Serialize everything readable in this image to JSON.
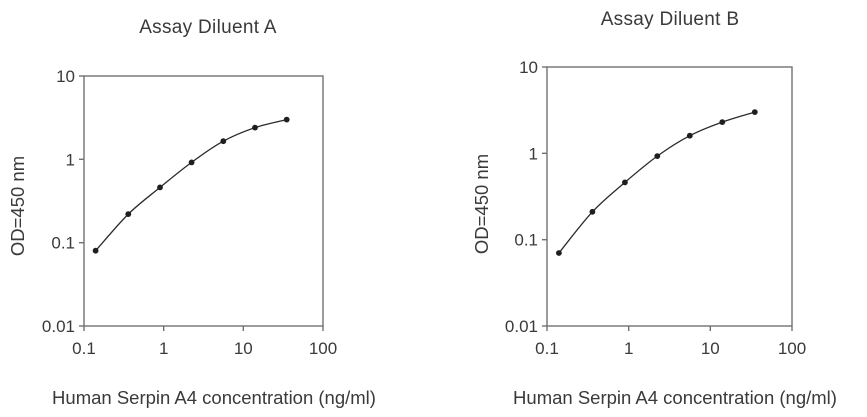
{
  "figure": {
    "background": "#ffffff",
    "text_color": "#3a3a3a",
    "axis_color": "#717171",
    "curve_color": "#2b2b2b",
    "marker_color": "#1f1f1f"
  },
  "chart_data": [
    {
      "type": "line",
      "title": "Assay Diluent A",
      "xlabel": "Human Serpin A4 concentration (ng/ml)",
      "ylabel": "OD=450 nm",
      "x_scale": "log",
      "y_scale": "log",
      "xlim": [
        0.1,
        100
      ],
      "ylim": [
        0.01,
        10
      ],
      "x_tick_labels": [
        "0.1",
        "1",
        "10",
        "100"
      ],
      "y_tick_labels": [
        "0.01",
        "0.1",
        "1",
        "10"
      ],
      "grid": false,
      "legend": "none",
      "marker": "filled-dot",
      "x": [
        0.14,
        0.36,
        0.9,
        2.24,
        5.6,
        14,
        35
      ],
      "y": [
        0.08,
        0.22,
        0.46,
        0.92,
        1.65,
        2.4,
        3.0
      ]
    },
    {
      "type": "line",
      "title": "Assay Diluent B",
      "xlabel": "Human Serpin A4 concentration (ng/ml)",
      "ylabel": "OD=450 nm",
      "x_scale": "log",
      "y_scale": "log",
      "xlim": [
        0.1,
        100
      ],
      "ylim": [
        0.01,
        10
      ],
      "x_tick_labels": [
        "0.1",
        "1",
        "10",
        "100"
      ],
      "y_tick_labels": [
        "0.01",
        "0.1",
        "1",
        "10"
      ],
      "grid": false,
      "legend": "none",
      "marker": "filled-dot",
      "x": [
        0.14,
        0.36,
        0.9,
        2.24,
        5.6,
        14,
        35
      ],
      "y": [
        0.07,
        0.21,
        0.46,
        0.93,
        1.6,
        2.3,
        3.0
      ]
    }
  ]
}
